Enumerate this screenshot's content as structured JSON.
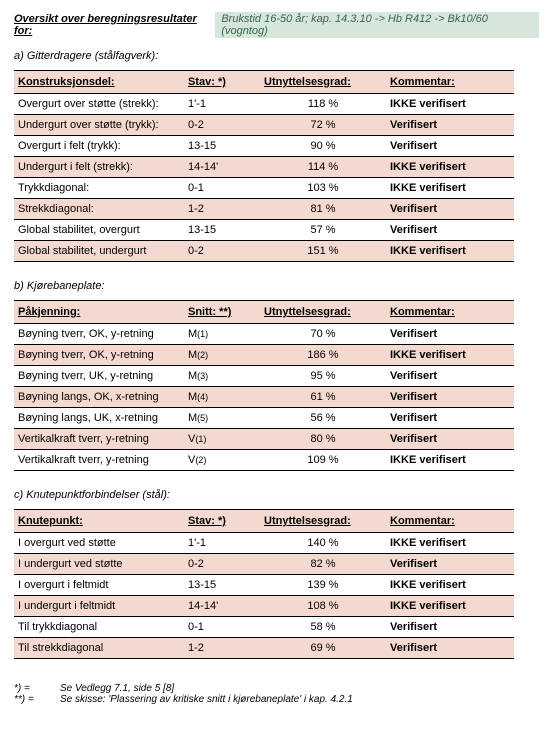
{
  "header": {
    "title": "Oversikt over beregningsresultater for:",
    "subtitle": "Brukstid 16-50 år; kap. 14.3.10 -> Hb R412 -> Bk10/60 (vogntog)"
  },
  "sections": [
    {
      "label": "a) Gitterdragere (stålfagverk):",
      "headers": [
        "Konstruksjonsdel:",
        "Stav: *)",
        "Utnyttelsesgrad:",
        "Kommentar:"
      ],
      "rows": [
        {
          "c1": "Overgurt over støtte (strekk):",
          "c2": "1'-1",
          "c3": "118 %",
          "c4": "IKKE verifisert",
          "tint": false
        },
        {
          "c1": "Undergurt over støtte (trykk):",
          "c2": "0-2",
          "c3": "72 %",
          "c4": "Verifisert",
          "tint": true
        },
        {
          "c1": "Overgurt i felt (trykk):",
          "c2": "13-15",
          "c3": "90 %",
          "c4": "Verifisert",
          "tint": false
        },
        {
          "c1": "Undergurt i felt (strekk):",
          "c2": "14-14'",
          "c3": "114 %",
          "c4": "IKKE verifisert",
          "tint": true
        },
        {
          "c1": "Trykkdiagonal:",
          "c2": "0-1",
          "c3": "103 %",
          "c4": "IKKE verifisert",
          "tint": false
        },
        {
          "c1": "Strekkdiagonal:",
          "c2": "1-2",
          "c3": "81 %",
          "c4": "Verifisert",
          "tint": true
        },
        {
          "c1": "Global stabilitet, overgurt",
          "c2": "13-15",
          "c3": "57 %",
          "c4": "Verifisert",
          "tint": false
        },
        {
          "c1": "Global stabilitet, undergurt",
          "c2": "0-2",
          "c3": "151 %",
          "c4": "IKKE verifisert",
          "tint": true
        }
      ]
    },
    {
      "label": "b) Kjørebaneplate:",
      "headers": [
        "Påkjenning:",
        "Snitt: **)",
        "Utnyttelsesgrad:",
        "Kommentar:"
      ],
      "snitt_style": true,
      "rows": [
        {
          "c1": "Bøyning tverr, OK, y-retning",
          "c2": "M(1)",
          "c3": "70 %",
          "c4": "Verifisert",
          "tint": false
        },
        {
          "c1": "Bøyning tverr, OK, y-retning",
          "c2": "M(2)",
          "c3": "186 %",
          "c4": "IKKE verifisert",
          "tint": true
        },
        {
          "c1": "Bøyning tverr, UK, y-retning",
          "c2": "M(3)",
          "c3": "95 %",
          "c4": "Verifisert",
          "tint": false
        },
        {
          "c1": "Bøyning langs, OK, x-retning",
          "c2": "M(4)",
          "c3": "61 %",
          "c4": "Verifisert",
          "tint": true
        },
        {
          "c1": "Bøyning langs, UK, x-retning",
          "c2": "M(5)",
          "c3": "56 %",
          "c4": "Verifisert",
          "tint": false
        },
        {
          "c1": "Vertikalkraft tverr, y-retning",
          "c2": "V(1)",
          "c3": "80 %",
          "c4": "Verifisert",
          "tint": true
        },
        {
          "c1": "Vertikalkraft tverr, y-retning",
          "c2": "V(2)",
          "c3": "109 %",
          "c4": "IKKE verifisert",
          "tint": false
        }
      ]
    },
    {
      "label": "c) Knutepunktforbindelser (stål):",
      "headers": [
        "Knutepunkt:",
        "Stav: *)",
        "Utnyttelsesgrad:",
        "Kommentar:"
      ],
      "rows": [
        {
          "c1": "I overgurt ved støtte",
          "c2": "1'-1",
          "c3": "140 %",
          "c4": "IKKE verifisert",
          "tint": false
        },
        {
          "c1": "I undergurt ved støtte",
          "c2": "0-2",
          "c3": "82 %",
          "c4": "Verifisert",
          "tint": true
        },
        {
          "c1": "I overgurt i feltmidt",
          "c2": "13-15",
          "c3": "139 %",
          "c4": "IKKE verifisert",
          "tint": false
        },
        {
          "c1": "I undergurt i feltmidt",
          "c2": "14-14'",
          "c3": "108 %",
          "c4": "IKKE verifisert",
          "tint": true
        },
        {
          "c1": "Til trykkdiagonal",
          "c2": "0-1",
          "c3": "58 %",
          "c4": "Verifisert",
          "tint": false
        },
        {
          "c1": "Til strekkdiagonal",
          "c2": "1-2",
          "c3": "69 %",
          "c4": "Verifisert",
          "tint": true
        }
      ]
    }
  ],
  "footnotes": [
    {
      "key": "*) =",
      "val": "Se Vedlegg 7.1, side 5 [8]"
    },
    {
      "key": "**) =",
      "val": "Se skisse: 'Plassering av kritiske snitt i kjørebaneplate' i kap. 4.2.1"
    }
  ]
}
